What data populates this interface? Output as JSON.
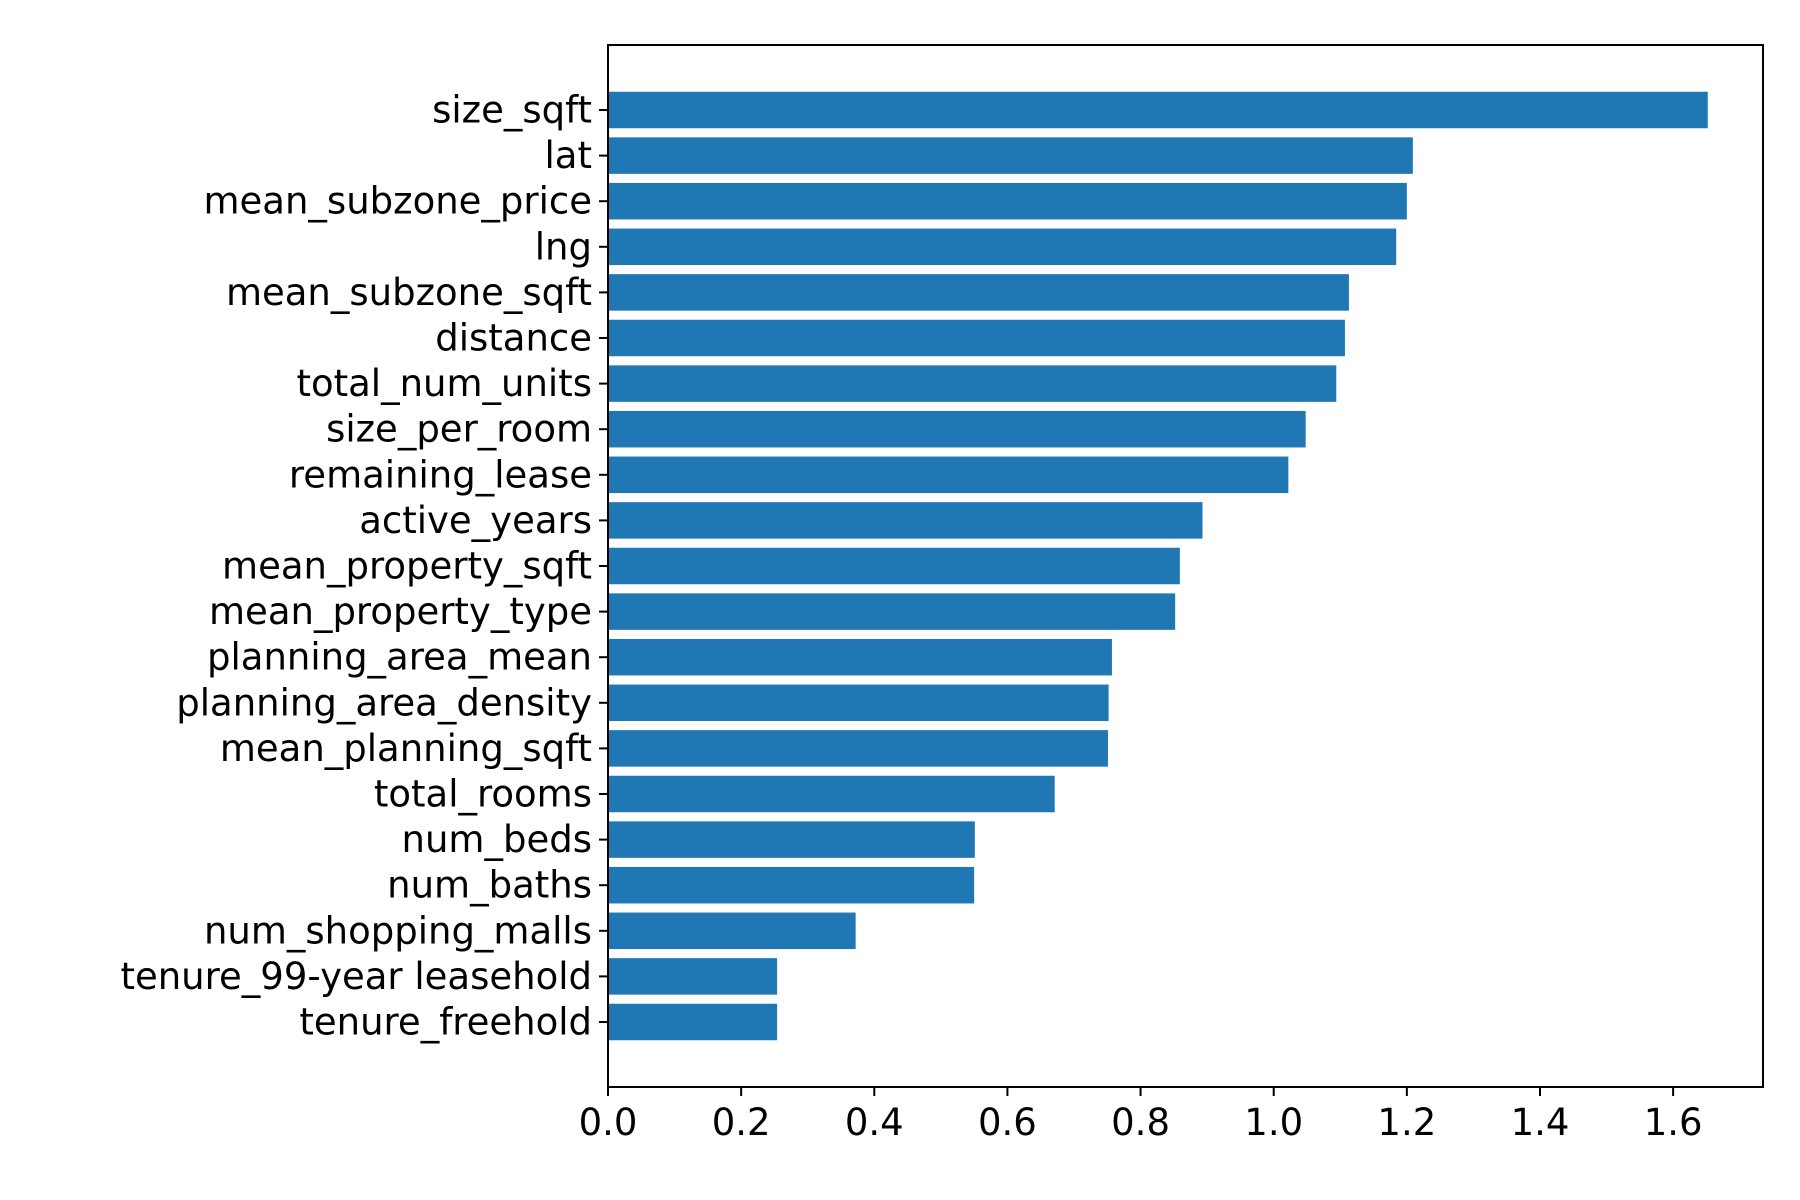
{
  "chart_data": {
    "type": "bar",
    "orientation": "horizontal",
    "title": "",
    "xlabel": "",
    "ylabel": "",
    "categories": [
      "size_sqft",
      "lat",
      "mean_subzone_price",
      "lng",
      "mean_subzone_sqft",
      "distance",
      "total_num_units",
      "size_per_room",
      "remaining_lease",
      "active_years",
      "mean_property_sqft",
      "mean_property_type",
      "planning_area_mean",
      "planning_area_density",
      "mean_planning_sqft",
      "total_rooms",
      "num_beds",
      "num_baths",
      "num_shopping_malls",
      "tenure_99-year leasehold",
      "tenure_freehold"
    ],
    "values": [
      1.652,
      1.209,
      1.2,
      1.184,
      1.113,
      1.107,
      1.094,
      1.048,
      1.022,
      0.893,
      0.859,
      0.852,
      0.757,
      0.752,
      0.751,
      0.671,
      0.551,
      0.55,
      0.372,
      0.254,
      0.254
    ],
    "xlim": [
      0.0,
      1.735
    ],
    "xticks": [
      "0.0",
      "0.2",
      "0.4",
      "0.6",
      "0.8",
      "1.0",
      "1.2",
      "1.4",
      "1.6"
    ],
    "bar_color": "#1f77b4",
    "grid": false,
    "legend": "none"
  }
}
